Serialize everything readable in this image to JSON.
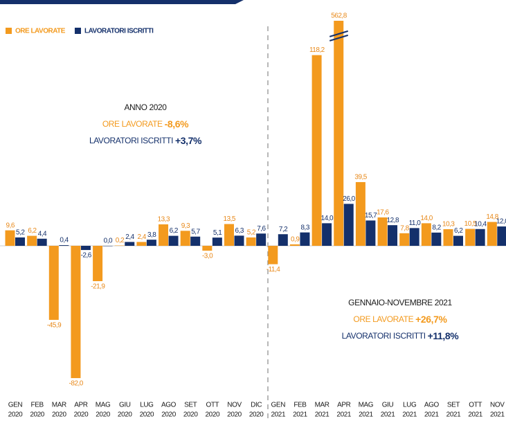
{
  "chart_data": {
    "type": "bar",
    "categories": [
      [
        "GEN",
        "2020"
      ],
      [
        "FEB",
        "2020"
      ],
      [
        "MAR",
        "2020"
      ],
      [
        "APR",
        "2020"
      ],
      [
        "MAG",
        "2020"
      ],
      [
        "GIU",
        "2020"
      ],
      [
        "LUG",
        "2020"
      ],
      [
        "AGO",
        "2020"
      ],
      [
        "SET",
        "2020"
      ],
      [
        "OTT",
        "2020"
      ],
      [
        "NOV",
        "2020"
      ],
      [
        "DIC",
        "2020"
      ],
      [
        "GEN",
        "2021"
      ],
      [
        "FEB",
        "2021"
      ],
      [
        "MAR",
        "2021"
      ],
      [
        "APR",
        "2021"
      ],
      [
        "MAG",
        "2021"
      ],
      [
        "GIU",
        "2021"
      ],
      [
        "LUG",
        "2021"
      ],
      [
        "AGO",
        "2021"
      ],
      [
        "SET",
        "2021"
      ],
      [
        "OTT",
        "2021"
      ],
      [
        "NOV",
        "2021"
      ]
    ],
    "series": [
      {
        "name": "ORE LAVORATE",
        "color": "#f39a1e",
        "values": [
          9.6,
          6.2,
          -45.9,
          -82.0,
          -21.9,
          0.2,
          2.4,
          13.3,
          9.3,
          -3.0,
          13.5,
          5.2,
          -11.4,
          0.9,
          118.2,
          562.8,
          39.5,
          17.6,
          7.8,
          14.0,
          10.3,
          10.5,
          14.8
        ],
        "value_labels": [
          "9,6",
          "6,2",
          "-45,9",
          "-82,0",
          "-21,9",
          "0,2",
          "2,4",
          "13,3",
          "9,3",
          "-3,0",
          "13,5",
          "5,2",
          "-11,4",
          "0,9",
          "118,2",
          "562,8",
          "39,5",
          "17,6",
          "7,8",
          "14,0",
          "10,3",
          "10,5",
          "14,8"
        ]
      },
      {
        "name": "LAVORATORI ISCRITTI",
        "color": "#14306b",
        "values": [
          5.2,
          4.4,
          0.4,
          -2.6,
          0.0,
          2.4,
          3.8,
          6.2,
          5.7,
          5.1,
          6.3,
          7.6,
          7.2,
          8.3,
          14.0,
          26.0,
          15.7,
          12.8,
          11.0,
          8.2,
          6.2,
          10.4,
          12.0
        ],
        "value_labels": [
          "5,2",
          "4,4",
          "0,4",
          "-2,6",
          "0,0",
          "2,4",
          "3,8",
          "6,2",
          "5,7",
          "5,1",
          "6,3",
          "7,6",
          "7,2",
          "8,3",
          "14,0",
          "26,0",
          "15,7",
          "12,8",
          "11,0",
          "8,2",
          "6,2",
          "10,4",
          "12,0"
        ]
      }
    ],
    "ylim": [
      -85,
      562.8
    ],
    "annotations": [
      {
        "title": "ANNO 2020",
        "lines": [
          [
            "ORE LAVORATE ",
            "-8,6%"
          ],
          [
            "LAVORATORI ISCRITTI ",
            "+3,7%"
          ]
        ]
      },
      {
        "title": "GENNAIO-NOVEMBRE 2021",
        "lines": [
          [
            "ORE LAVORATE ",
            "+26,7%"
          ],
          [
            "LAVORATORI ISCRITTI ",
            "+11,8%"
          ]
        ]
      }
    ]
  }
}
